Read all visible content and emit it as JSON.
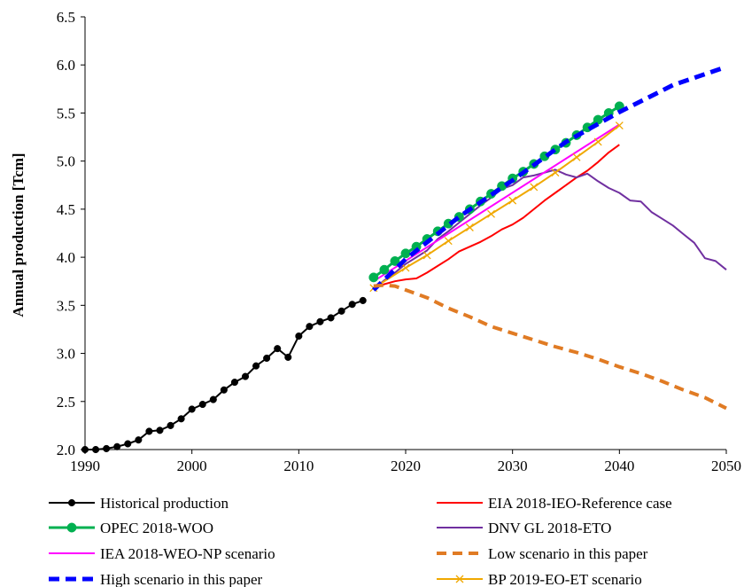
{
  "chart_data": {
    "type": "line",
    "title": "",
    "xlabel": "",
    "ylabel": "Annual production [Tcm]",
    "xlim": [
      1990,
      2050
    ],
    "ylim": [
      2.0,
      6.5
    ],
    "xticks": [
      1990,
      2000,
      2010,
      2020,
      2030,
      2040,
      2050
    ],
    "yticks": [
      2.0,
      2.5,
      3.0,
      3.5,
      4.0,
      4.5,
      5.0,
      5.5,
      6.0,
      6.5
    ],
    "ytick_labels": [
      "2.0",
      "2.5",
      "3.0",
      "3.5",
      "4.0",
      "4.5",
      "5.0",
      "5.5",
      "6.0",
      "6.5"
    ],
    "grid": false,
    "legend_position": "bottom",
    "series": [
      {
        "name": "Historical production",
        "color": "#000000",
        "style": "solid",
        "marker": "dot",
        "x": [
          1990,
          1991,
          1992,
          1993,
          1994,
          1995,
          1996,
          1997,
          1998,
          1999,
          2000,
          2001,
          2002,
          2003,
          2004,
          2005,
          2006,
          2007,
          2008,
          2009,
          2010,
          2011,
          2012,
          2013,
          2014,
          2015,
          2016
        ],
        "y": [
          2.0,
          2.0,
          2.01,
          2.03,
          2.06,
          2.1,
          2.19,
          2.2,
          2.25,
          2.32,
          2.42,
          2.47,
          2.52,
          2.62,
          2.7,
          2.76,
          2.87,
          2.95,
          3.05,
          2.96,
          3.18,
          3.28,
          3.33,
          3.37,
          3.44,
          3.51,
          3.55
        ]
      },
      {
        "name": "EIA 2018-IEO-Reference case",
        "color": "#ff0000",
        "style": "solid",
        "marker": "none",
        "x": [
          2017,
          2018,
          2019,
          2020,
          2021,
          2022,
          2023,
          2024,
          2025,
          2026,
          2027,
          2028,
          2029,
          2030,
          2031,
          2032,
          2033,
          2034,
          2035,
          2036,
          2037,
          2038,
          2039,
          2040
        ],
        "y": [
          3.68,
          3.72,
          3.75,
          3.77,
          3.78,
          3.84,
          3.91,
          3.98,
          4.06,
          4.11,
          4.16,
          4.22,
          4.29,
          4.34,
          4.41,
          4.5,
          4.59,
          4.67,
          4.75,
          4.83,
          4.9,
          4.99,
          5.09,
          5.17
        ]
      },
      {
        "name": "OPEC 2018-WOO",
        "color": "#00b050",
        "style": "solid",
        "marker": "dot",
        "x": [
          2017,
          2018,
          2019,
          2020,
          2021,
          2022,
          2023,
          2024,
          2025,
          2026,
          2027,
          2028,
          2029,
          2030,
          2031,
          2032,
          2033,
          2034,
          2035,
          2036,
          2037,
          2038,
          2039,
          2040
        ],
        "y": [
          3.79,
          3.87,
          3.96,
          4.04,
          4.11,
          4.19,
          4.27,
          4.35,
          4.42,
          4.5,
          4.58,
          4.66,
          4.74,
          4.82,
          4.89,
          4.97,
          5.05,
          5.12,
          5.19,
          5.27,
          5.35,
          5.43,
          5.5,
          5.57
        ]
      },
      {
        "name": "DNV GL 2018-ETO",
        "color": "#7030a0",
        "style": "solid",
        "marker": "none",
        "x": [
          2017,
          2018,
          2019,
          2020,
          2021,
          2022,
          2023,
          2024,
          2025,
          2026,
          2027,
          2028,
          2029,
          2030,
          2031,
          2032,
          2033,
          2034,
          2035,
          2036,
          2037,
          2038,
          2039,
          2040,
          2041,
          2042,
          2043,
          2044,
          2045,
          2046,
          2047,
          2048,
          2049,
          2050
        ],
        "y": [
          3.67,
          3.76,
          3.84,
          3.93,
          4.0,
          4.07,
          4.19,
          4.27,
          4.36,
          4.45,
          4.54,
          4.62,
          4.71,
          4.75,
          4.83,
          4.85,
          4.88,
          4.91,
          4.86,
          4.83,
          4.87,
          4.79,
          4.72,
          4.67,
          4.59,
          4.58,
          4.47,
          4.4,
          4.33,
          4.24,
          4.15,
          3.99,
          3.96,
          3.87
        ]
      },
      {
        "name": "IEA 2018-WEO-NP scenario",
        "color": "#ff00ff",
        "style": "solid",
        "marker": "none",
        "x": [
          2017,
          2040
        ],
        "y": [
          3.75,
          5.38
        ]
      },
      {
        "name": "Low scenario in this paper",
        "color": "#e07b24",
        "style": "dashed",
        "marker": "none",
        "x": [
          2017,
          2018,
          2019,
          2020,
          2022,
          2024,
          2026,
          2028,
          2030,
          2032,
          2034,
          2036,
          2038,
          2040,
          2042,
          2044,
          2046,
          2048,
          2050
        ],
        "y": [
          3.7,
          3.71,
          3.7,
          3.66,
          3.58,
          3.47,
          3.38,
          3.28,
          3.21,
          3.14,
          3.07,
          3.01,
          2.94,
          2.86,
          2.79,
          2.71,
          2.62,
          2.54,
          2.43
        ]
      },
      {
        "name": "High scenario in this paper",
        "color": "#0000ff",
        "style": "dashed",
        "marker": "none",
        "x": [
          2017,
          2020,
          2025,
          2030,
          2035,
          2040,
          2045,
          2050
        ],
        "y": [
          3.66,
          3.98,
          4.42,
          4.8,
          5.2,
          5.51,
          5.79,
          5.98
        ]
      },
      {
        "name": "BP 2019-EO-ET scenario",
        "color": "#f0a800",
        "style": "solid",
        "marker": "x",
        "x": [
          2017,
          2020,
          2022,
          2024,
          2026,
          2028,
          2030,
          2032,
          2034,
          2036,
          2038,
          2040
        ],
        "y": [
          3.68,
          3.89,
          4.02,
          4.17,
          4.31,
          4.45,
          4.59,
          4.73,
          4.88,
          5.04,
          5.2,
          5.37
        ]
      }
    ]
  }
}
